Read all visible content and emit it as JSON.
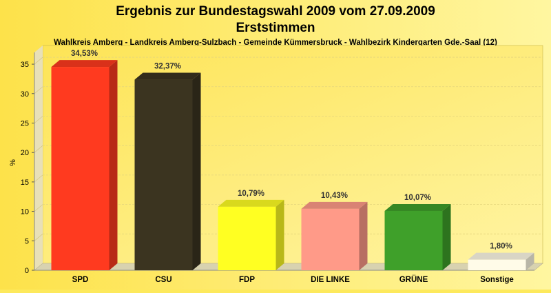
{
  "chart_data": {
    "type": "bar",
    "title": "Ergebnis zur Bundestagswahl 2009 vom 27.09.2009",
    "title_line2": "Erststimmen",
    "subtitle": "Wahlkreis Amberg - Landkreis Amberg-Sulzbach - Gemeinde Kümmersbruck - Wahlbezirk Kindergarten Gde.-Saal (12)",
    "xlabel": "",
    "ylabel": "%",
    "ylim": [
      0,
      37
    ],
    "yticks": [
      0,
      5,
      10,
      15,
      20,
      25,
      30,
      35
    ],
    "grid": true,
    "categories": [
      "SPD",
      "CSU",
      "FDP",
      "DIE LINKE",
      "GRÜNE",
      "Sonstige"
    ],
    "values": [
      34.53,
      32.37,
      10.79,
      10.43,
      10.07,
      1.8
    ],
    "value_labels": [
      "34,53%",
      "32,37%",
      "10,79%",
      "10,43%",
      "10,07%",
      "1,80%"
    ],
    "colors": [
      "#ff3a1f",
      "#3b3420",
      "#ffff22",
      "#ff9a88",
      "#3fa02a",
      "#fffbe8"
    ],
    "background": "#fde95c"
  }
}
